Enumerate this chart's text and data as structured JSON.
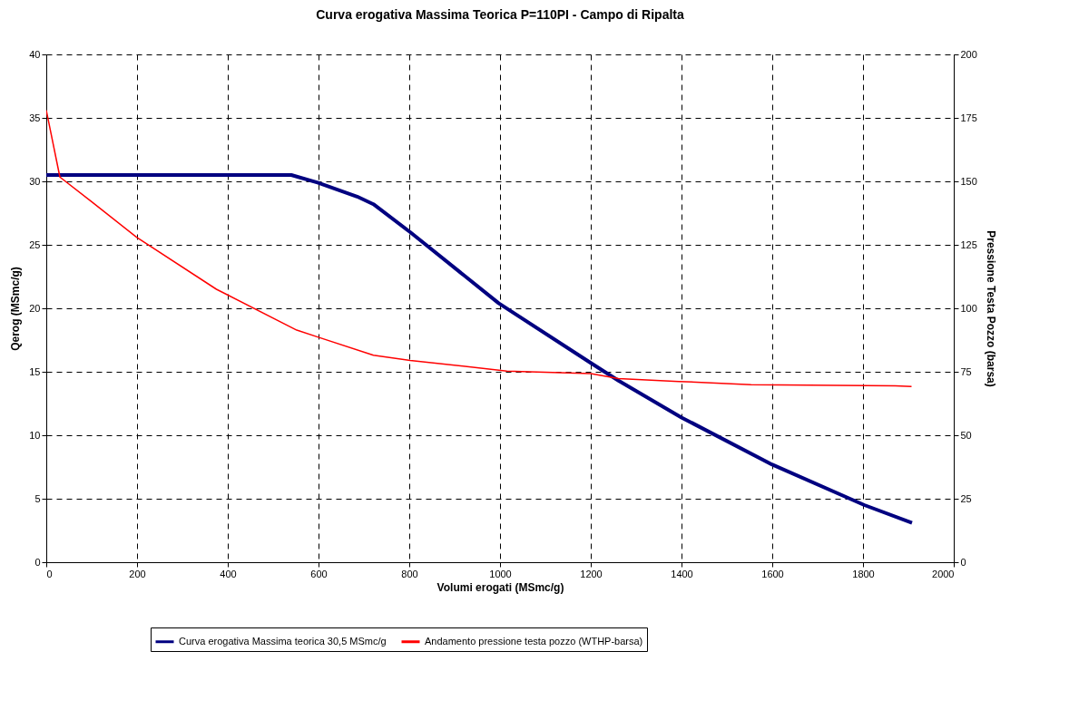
{
  "chart_data": {
    "type": "line",
    "title": "Curva erogativa Massima Teorica P=110PI - Campo di Ripalta",
    "xlabel": "Volumi erogati (MSmc/g)",
    "ylabel": "Qerog (MSmc/g)",
    "y2label": "Pressione Testa Pozzo (barsa)",
    "xlim": [
      0,
      2000
    ],
    "xticks": [
      0,
      200,
      400,
      600,
      800,
      1000,
      1200,
      1400,
      1600,
      1800,
      2000
    ],
    "ylim": [
      0,
      40
    ],
    "yticks": [
      0,
      5,
      10,
      15,
      20,
      25,
      30,
      35,
      40
    ],
    "y2lim": [
      0,
      200
    ],
    "y2ticks": [
      0,
      25,
      50,
      75,
      100,
      125,
      150,
      175,
      200
    ],
    "grid": true,
    "legend": "bottom",
    "line_style": "solid",
    "marker": "none",
    "series": [
      {
        "name": "Curva erogativa Massima teorica 30,5 MSmc/g",
        "color": "#000080",
        "x": [
          0,
          540,
          598,
          685,
          721,
          802,
          997,
          1200,
          1261,
          1400,
          1599,
          1803,
          1908
        ],
        "values": [
          30.5,
          30.5,
          29.9,
          28.8,
          28.2,
          26.0,
          20.4,
          15.7,
          14.3,
          11.4,
          7.7,
          4.5,
          3.1
        ]
      },
      {
        "name": "Andamento pressione testa pozzo (WTHP-barsa)",
        "color": "#ff0000",
        "axis": "y2",
        "x": [
          0,
          30,
          101,
          199,
          375,
          552,
          598,
          721,
          802,
          1015,
          1200,
          1261,
          1394,
          1553,
          1871,
          1907
        ],
        "values": [
          178,
          151.7,
          141.8,
          128,
          107.5,
          91.4,
          88.7,
          81.5,
          79.5,
          75.3,
          74.3,
          72.3,
          71.2,
          69.9,
          69.5,
          69.2
        ]
      }
    ]
  }
}
